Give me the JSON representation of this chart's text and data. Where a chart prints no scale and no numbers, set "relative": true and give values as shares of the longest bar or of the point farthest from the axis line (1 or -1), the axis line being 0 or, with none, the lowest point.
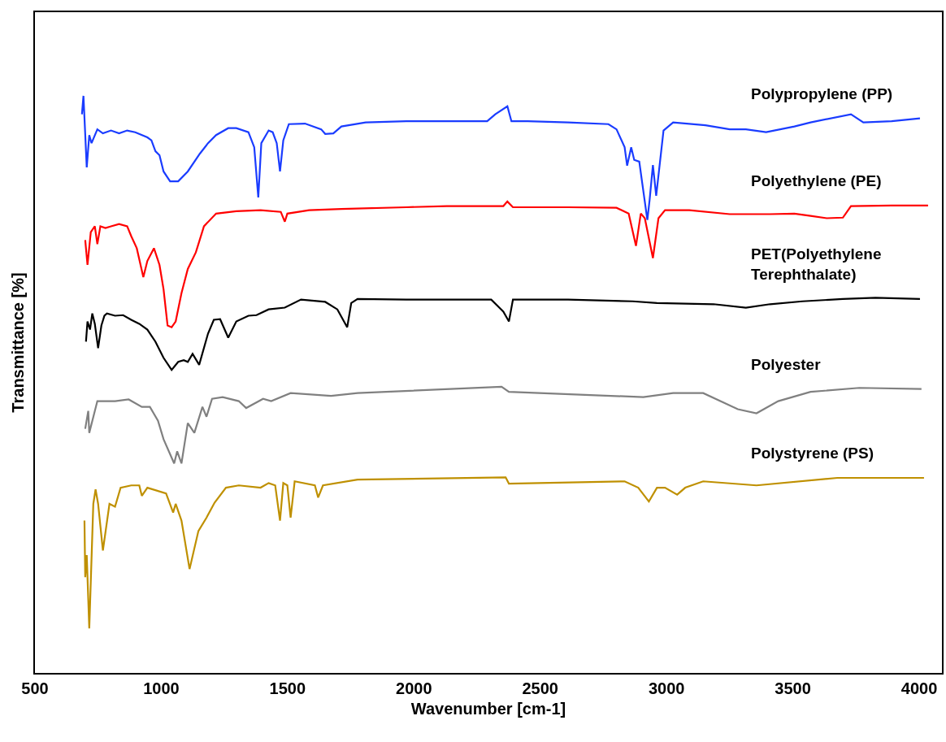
{
  "chart_data": {
    "type": "line",
    "relative": true,
    "xlabel": "Wavenumber [cm-1]",
    "ylabel": "Transmittance [%]",
    "xlim": [
      500,
      4090
    ],
    "xticks": [
      500,
      1000,
      1500,
      2000,
      2500,
      3000,
      3500,
      4000
    ],
    "tick_labels": "x",
    "legend": false,
    "marker": "none",
    "line_style": "solid",
    "series": [
      {
        "name": "Polypropylene (PP)",
        "color": "#1a3cff",
        "x": [
          686,
          692,
          705,
          715,
          724,
          747,
          769,
          801,
          833,
          865,
          897,
          945,
          961,
          977,
          993,
          1009,
          1035,
          1067,
          1105,
          1153,
          1185,
          1217,
          1265,
          1297,
          1345,
          1368,
          1384,
          1396,
          1425,
          1441,
          1457,
          1470,
          1483,
          1505,
          1569,
          1633,
          1649,
          1681,
          1713,
          1809,
          1970,
          2130,
          2290,
          2322,
          2370,
          2386,
          2450,
          2610,
          2770,
          2802,
          2834,
          2844,
          2860,
          2872,
          2892,
          2904,
          2924,
          2933,
          2946,
          2959,
          2988,
          3026,
          3154,
          3250,
          3314,
          3394,
          3506,
          3570,
          3730,
          3779,
          3891,
          4003
        ],
        "values": [
          0.968,
          1.0,
          0.876,
          0.932,
          0.918,
          0.942,
          0.935,
          0.94,
          0.935,
          0.94,
          0.937,
          0.928,
          0.923,
          0.904,
          0.897,
          0.869,
          0.852,
          0.852,
          0.869,
          0.9,
          0.918,
          0.932,
          0.944,
          0.944,
          0.937,
          0.911,
          0.824,
          0.918,
          0.94,
          0.937,
          0.918,
          0.869,
          0.923,
          0.951,
          0.952,
          0.942,
          0.934,
          0.935,
          0.947,
          0.954,
          0.956,
          0.956,
          0.956,
          0.968,
          0.982,
          0.956,
          0.956,
          0.954,
          0.951,
          0.942,
          0.911,
          0.879,
          0.911,
          0.889,
          0.886,
          0.848,
          0.785,
          0.82,
          0.88,
          0.827,
          0.94,
          0.954,
          0.949,
          0.942,
          0.942,
          0.937,
          0.947,
          0.954,
          0.968,
          0.954,
          0.956,
          0.961
        ]
      },
      {
        "name": "Polyethylene (PE)",
        "color": "#ff0000",
        "x": [
          699,
          708,
          721,
          737,
          747,
          759,
          779,
          801,
          833,
          865,
          881,
          903,
          929,
          945,
          971,
          993,
          1009,
          1025,
          1041,
          1057,
          1080,
          1105,
          1137,
          1169,
          1217,
          1297,
          1393,
          1473,
          1489,
          1499,
          1585,
          1713,
          1970,
          2130,
          2354,
          2370,
          2392,
          2610,
          2802,
          2850,
          2879,
          2898,
          2914,
          2946,
          2968,
          2994,
          3090,
          3250,
          3410,
          3506,
          3570,
          3634,
          3698,
          3730,
          3891,
          4035
        ],
        "values": [
          0.75,
          0.707,
          0.764,
          0.774,
          0.743,
          0.774,
          0.771,
          0.774,
          0.778,
          0.774,
          0.757,
          0.736,
          0.686,
          0.714,
          0.736,
          0.707,
          0.665,
          0.602,
          0.599,
          0.609,
          0.658,
          0.7,
          0.729,
          0.774,
          0.796,
          0.8,
          0.802,
          0.799,
          0.782,
          0.796,
          0.802,
          0.804,
          0.807,
          0.809,
          0.809,
          0.817,
          0.807,
          0.807,
          0.806,
          0.796,
          0.74,
          0.796,
          0.788,
          0.719,
          0.788,
          0.802,
          0.802,
          0.795,
          0.795,
          0.796,
          0.792,
          0.788,
          0.789,
          0.809,
          0.81,
          0.81
        ]
      },
      {
        "name": "PET(Polyethylene Terephthalate)",
        "color": "#000000",
        "x": [
          702,
          708,
          718,
          727,
          737,
          750,
          763,
          775,
          785,
          817,
          849,
          881,
          913,
          945,
          977,
          1009,
          1041,
          1067,
          1089,
          1105,
          1124,
          1150,
          1185,
          1208,
          1233,
          1265,
          1297,
          1345,
          1377,
          1425,
          1489,
          1553,
          1649,
          1697,
          1736,
          1752,
          1777,
          1970,
          2162,
          2306,
          2338,
          2354,
          2376,
          2392,
          2610,
          2866,
          2962,
          3186,
          3314,
          3410,
          3538,
          3698,
          3827,
          4003
        ],
        "values": [
          0.574,
          0.609,
          0.595,
          0.623,
          0.605,
          0.563,
          0.602,
          0.619,
          0.623,
          0.619,
          0.62,
          0.612,
          0.605,
          0.595,
          0.574,
          0.546,
          0.525,
          0.539,
          0.542,
          0.539,
          0.553,
          0.534,
          0.588,
          0.612,
          0.613,
          0.581,
          0.609,
          0.619,
          0.62,
          0.63,
          0.633,
          0.647,
          0.643,
          0.63,
          0.599,
          0.641,
          0.648,
          0.647,
          0.647,
          0.647,
          0.633,
          0.626,
          0.609,
          0.647,
          0.647,
          0.644,
          0.641,
          0.639,
          0.633,
          0.639,
          0.644,
          0.648,
          0.65,
          0.648
        ]
      },
      {
        "name": "Polyester",
        "color": "#808080",
        "x": [
          699,
          711,
          715,
          747,
          817,
          871,
          923,
          955,
          987,
          1009,
          1051,
          1063,
          1080,
          1105,
          1131,
          1163,
          1179,
          1201,
          1243,
          1307,
          1336,
          1403,
          1435,
          1512,
          1672,
          1777,
          2347,
          2376,
          2908,
          3026,
          3145,
          3282,
          3356,
          3442,
          3570,
          3763,
          4009
        ],
        "values": [
          0.423,
          0.454,
          0.416,
          0.471,
          0.471,
          0.474,
          0.461,
          0.461,
          0.437,
          0.405,
          0.363,
          0.384,
          0.363,
          0.433,
          0.416,
          0.461,
          0.444,
          0.475,
          0.478,
          0.471,
          0.459,
          0.475,
          0.471,
          0.485,
          0.48,
          0.485,
          0.496,
          0.487,
          0.478,
          0.485,
          0.485,
          0.457,
          0.45,
          0.471,
          0.487,
          0.494,
          0.492
        ]
      },
      {
        "name": "Polystyrene (PS)",
        "color": "#bf9000",
        "x": [
          696,
          699,
          705,
          715,
          731,
          740,
          750,
          769,
          795,
          817,
          839,
          881,
          913,
          923,
          945,
          1019,
          1047,
          1057,
          1080,
          1112,
          1147,
          1179,
          1211,
          1256,
          1307,
          1393,
          1425,
          1451,
          1470,
          1483,
          1499,
          1512,
          1528,
          1608,
          1621,
          1640,
          1777,
          2363,
          2376,
          2834,
          2888,
          2930,
          2962,
          2994,
          3042,
          3074,
          3145,
          3356,
          3676,
          4019
        ],
        "values": [
          0.264,
          0.166,
          0.204,
          0.077,
          0.293,
          0.318,
          0.293,
          0.212,
          0.293,
          0.288,
          0.321,
          0.325,
          0.325,
          0.307,
          0.321,
          0.311,
          0.278,
          0.293,
          0.264,
          0.18,
          0.246,
          0.269,
          0.295,
          0.321,
          0.325,
          0.321,
          0.329,
          0.325,
          0.264,
          0.329,
          0.325,
          0.269,
          0.332,
          0.325,
          0.304,
          0.325,
          0.335,
          0.339,
          0.328,
          0.332,
          0.321,
          0.297,
          0.321,
          0.321,
          0.309,
          0.321,
          0.332,
          0.325,
          0.338,
          0.338
        ]
      }
    ]
  }
}
